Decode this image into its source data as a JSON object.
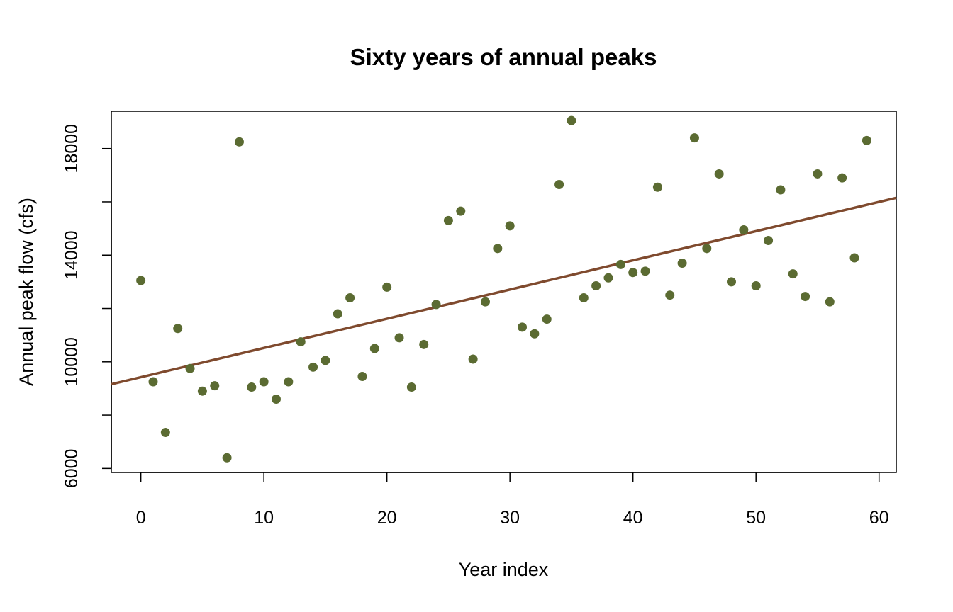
{
  "chart_data": {
    "type": "scatter",
    "title": "Sixty years of annual peaks",
    "xlabel": "Year index",
    "ylabel": "Annual peak flow (cfs)",
    "xlim": [
      -2.4,
      61.4
    ],
    "ylim": [
      5850,
      19400
    ],
    "xticks": [
      0,
      10,
      20,
      30,
      40,
      50,
      60
    ],
    "yticks": [
      6000,
      8000,
      10000,
      12000,
      14000,
      16000,
      18000
    ],
    "ytick_labels": [
      "6000",
      "",
      "10000",
      "",
      "14000",
      "",
      "18000"
    ],
    "grid": false,
    "series": [
      {
        "marker_color": "#5b6b32",
        "x": [
          0,
          1,
          2,
          3,
          4,
          5,
          6,
          7,
          8,
          9,
          10,
          11,
          12,
          13,
          14,
          15,
          16,
          17,
          18,
          19,
          20,
          21,
          22,
          23,
          24,
          25,
          26,
          27,
          28,
          29,
          30,
          31,
          32,
          33,
          34,
          35,
          36,
          37,
          38,
          39,
          40,
          41,
          42,
          43,
          44,
          45,
          46,
          47,
          48,
          49,
          50,
          51,
          52,
          53,
          54,
          55,
          56,
          57,
          58,
          59
        ],
        "y": [
          13050,
          9250,
          7350,
          11250,
          9750,
          8900,
          9100,
          6400,
          18250,
          9050,
          9250,
          8600,
          9250,
          10750,
          9800,
          10050,
          11800,
          12400,
          9450,
          10500,
          12800,
          10900,
          9050,
          10650,
          12150,
          15300,
          15650,
          10100,
          12250,
          14250,
          15100,
          11300,
          11050,
          11600,
          16650,
          19050,
          12400,
          12850,
          13150,
          13650,
          13350,
          13400,
          16550,
          12500,
          13700,
          18400,
          14250,
          17050,
          13000,
          14950,
          12850,
          14550,
          16450,
          13300,
          12450,
          17050,
          12250,
          16900,
          13900,
          18300
        ]
      }
    ],
    "trend_line": {
      "color": "#7f4a2e",
      "x": [
        -2.4,
        61.4
      ],
      "y": [
        9160,
        16150
      ]
    }
  }
}
